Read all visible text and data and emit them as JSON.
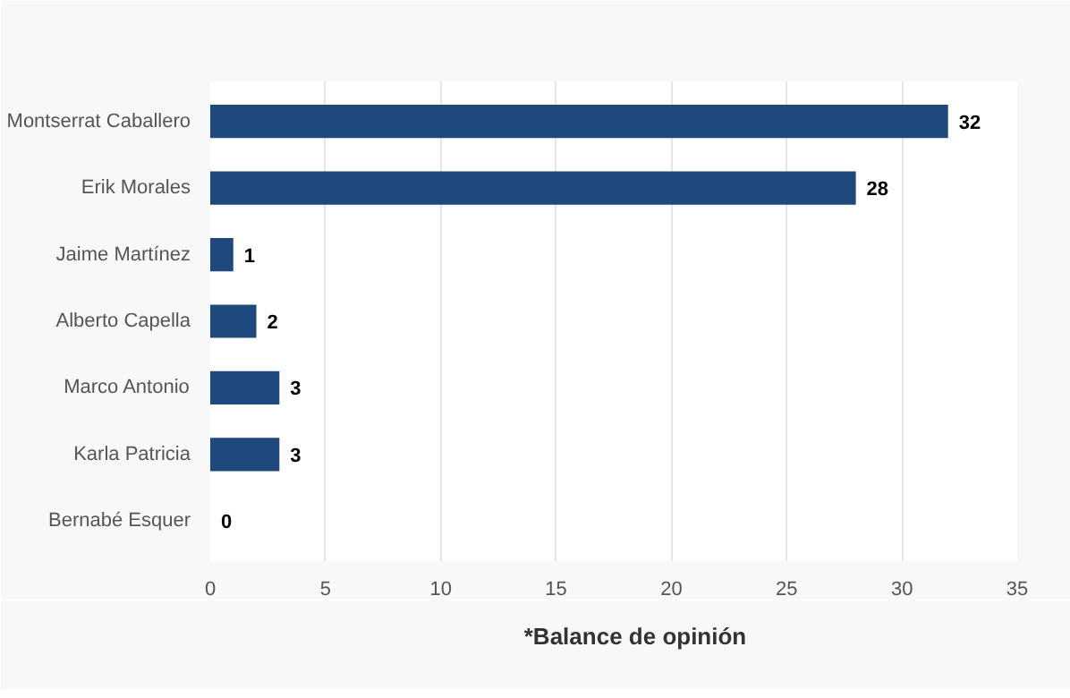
{
  "chart_data": {
    "type": "bar",
    "orientation": "horizontal",
    "categories": [
      "Montserrat Caballero",
      "Erik Morales",
      "Jaime Martínez",
      "Alberto Capella",
      "Marco Antonio",
      "Karla Patricia",
      "Bernabé Esquer"
    ],
    "series": [
      {
        "name": "*Balance de opinión",
        "color": "#1f497d",
        "values": [
          32,
          28,
          1,
          2,
          3,
          3,
          0
        ]
      }
    ],
    "xlim": [
      0,
      35
    ],
    "xticks": [
      0,
      5,
      10,
      15,
      20,
      25,
      30,
      35
    ],
    "grid": "x",
    "legend": "bottom",
    "data_labels": true
  }
}
